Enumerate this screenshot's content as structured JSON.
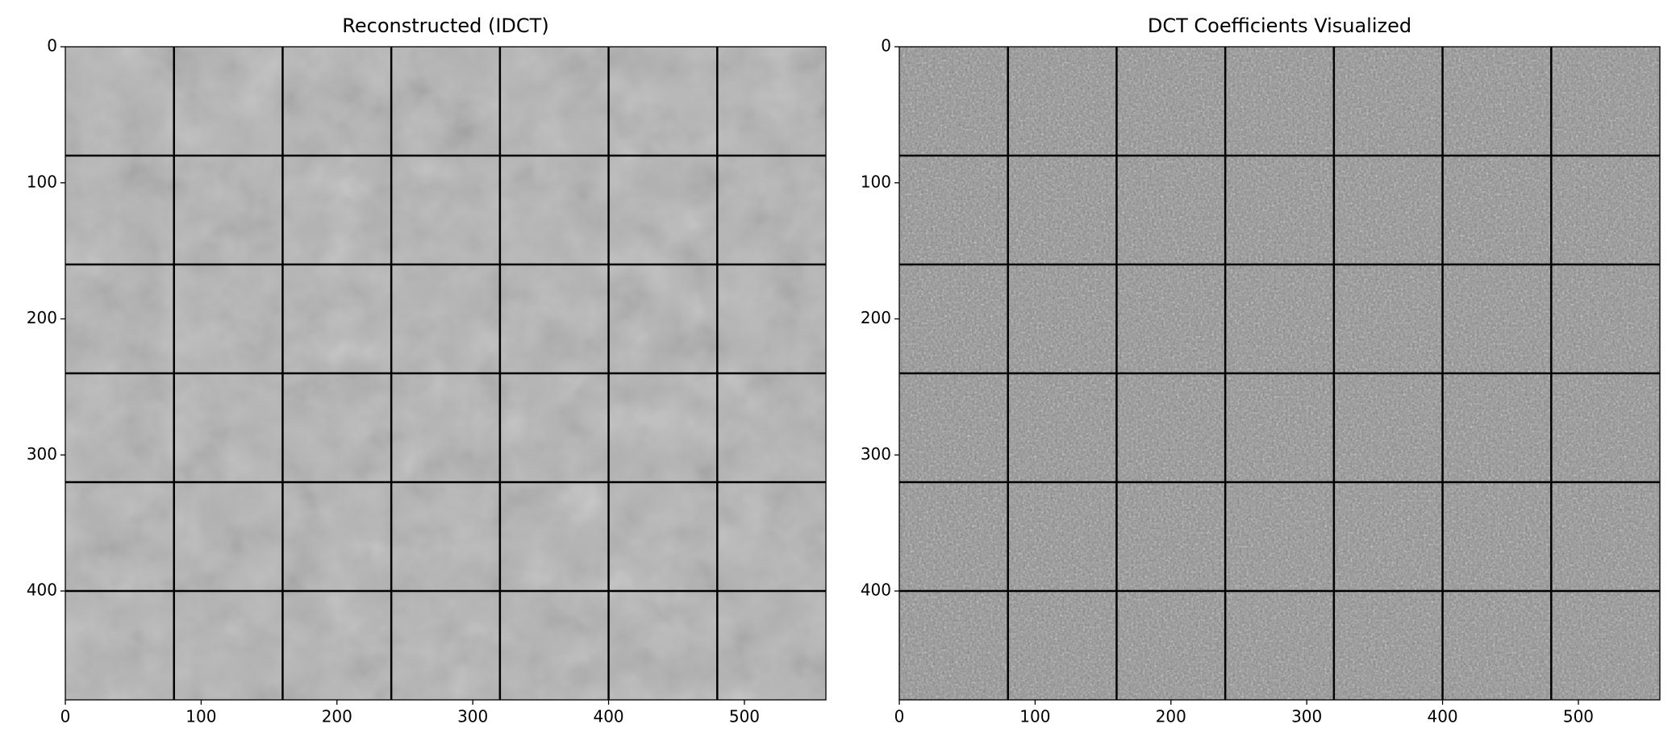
{
  "chart_data": [
    {
      "type": "image",
      "title": "Reconstructed (IDCT)",
      "xlim": [
        0,
        560
      ],
      "ylim": [
        480,
        0
      ],
      "xticks": [
        0,
        100,
        200,
        300,
        400,
        500
      ],
      "yticks": [
        0,
        100,
        200,
        300,
        400
      ],
      "vlines": [
        80,
        160,
        240,
        320,
        400,
        480
      ],
      "hlines": [
        80,
        160,
        240,
        320,
        400
      ],
      "color": "#b4b4b4"
    },
    {
      "type": "image",
      "title": "DCT Coefficients Visualized",
      "xlim": [
        0,
        560
      ],
      "ylim": [
        480,
        0
      ],
      "xticks": [
        0,
        100,
        200,
        300,
        400,
        500
      ],
      "yticks": [
        0,
        100,
        200,
        300,
        400
      ],
      "vlines": [
        80,
        160,
        240,
        320,
        400,
        480
      ],
      "hlines": [
        80,
        160,
        240,
        320,
        400
      ],
      "color": "#8c8c8c"
    }
  ]
}
